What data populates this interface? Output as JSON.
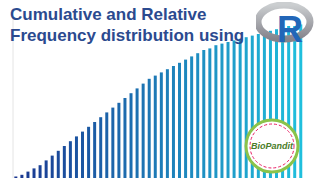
{
  "chart_data": {
    "type": "bar",
    "title": "Cumulative and Relative\nFrequency distribution using",
    "values": [
      1,
      2,
      4,
      6,
      8,
      11,
      14,
      17,
      20,
      23,
      26,
      29,
      32,
      35,
      38,
      41,
      44,
      47,
      50,
      53,
      56,
      59,
      62,
      64,
      66,
      68,
      70,
      72,
      74,
      76,
      78,
      80,
      81,
      83,
      84,
      85,
      86,
      87,
      88,
      89,
      90,
      91,
      92,
      93,
      94,
      95,
      95,
      96
    ],
    "color": "#20c8e2",
    "ylim": [
      0,
      100
    ],
    "tick_labels": false,
    "grid": false,
    "annotations": [
      "R",
      "BioPandit"
    ]
  }
}
